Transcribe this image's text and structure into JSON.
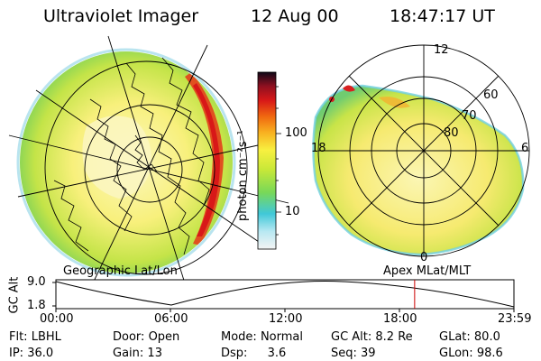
{
  "header": {
    "instrument": "Ultraviolet Imager",
    "date": "12 Aug 00",
    "time": "18:47:17 UT"
  },
  "colorbar": {
    "unit_label": "photon cm⁻²s⁻¹",
    "ticks": [
      "100",
      "10"
    ]
  },
  "left_map": {
    "caption": "Geographic Lat/Lon"
  },
  "right_map": {
    "caption": "Apex MLat/MLT",
    "mlt_labels": {
      "top": "12",
      "left": "18",
      "right": "6",
      "bottom": "0"
    },
    "lat_labels": [
      "60",
      "70",
      "80"
    ]
  },
  "altitude_plot": {
    "ylabel": "GC Alt",
    "yticks": [
      "9.0",
      "1.8"
    ],
    "xticks": [
      "00:00",
      "06:00",
      "12:00",
      "18:00",
      "23:59"
    ],
    "marker_time": "18:47"
  },
  "status": {
    "filter": {
      "label": "Flt:",
      "value": "LBHL"
    },
    "ip": {
      "label": "IP:",
      "value": "36.0"
    },
    "door": {
      "label": "Door:",
      "value": "Open"
    },
    "gain": {
      "label": "Gain:",
      "value": "13"
    },
    "mode": {
      "label": "Mode:",
      "value": "Normal"
    },
    "dsp": {
      "label": "Dsp:",
      "value": "3.6"
    },
    "gc_alt": {
      "label": "GC Alt:",
      "value": "8.2 Re"
    },
    "seq": {
      "label": "Seq:",
      "value": "39"
    },
    "glat": {
      "label": "GLat:",
      "value": "80.0"
    },
    "glon": {
      "label": "GLon:",
      "value": "98.6"
    }
  },
  "colors": {
    "background": "#ffffff",
    "marker_line": "#cc0000"
  }
}
